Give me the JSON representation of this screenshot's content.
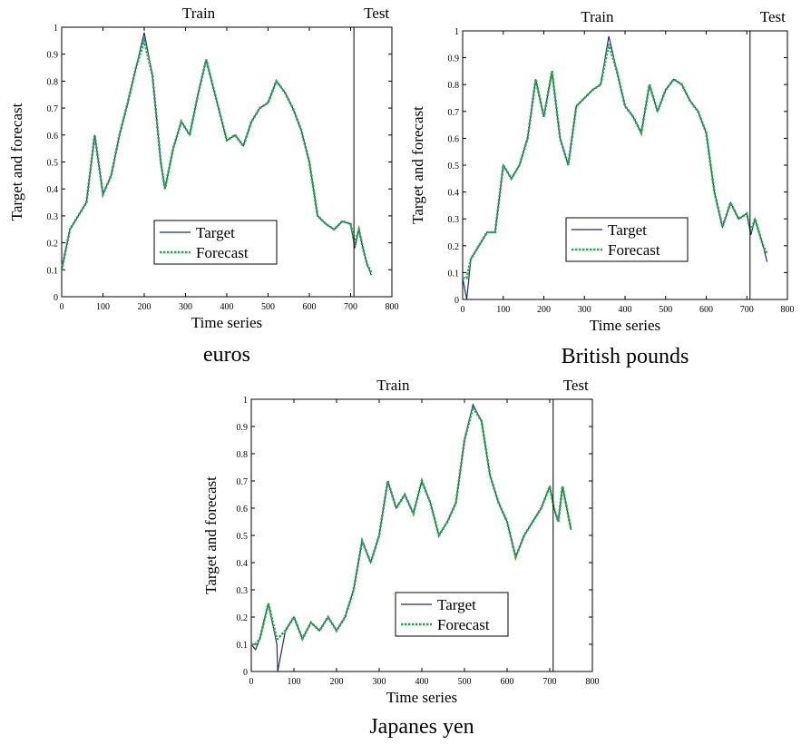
{
  "figure": {
    "target_color": "#1f2a7a",
    "forecast_color": "#2aa84a"
  },
  "chart_data": [
    {
      "type": "line",
      "caption": "euros",
      "xlabel": "Time series",
      "ylabel": "Target and forecast",
      "xlim": [
        0,
        800
      ],
      "ylim": [
        0,
        1
      ],
      "xticks": [
        "0",
        "100",
        "200",
        "300",
        "400",
        "500",
        "600",
        "700",
        "800"
      ],
      "yticks": [
        "0",
        "0.1",
        "0.2",
        "0.3",
        "0.4",
        "0.5",
        "0.6",
        "0.7",
        "0.8",
        "0.9",
        "1"
      ],
      "region_labels": {
        "train": "Train",
        "test": "Test"
      },
      "split_x": 708,
      "legend": {
        "target": "Target",
        "forecast": "Forecast"
      },
      "legend_position": "lower-right",
      "grid": false,
      "series": [
        {
          "name": "Target",
          "x": [
            0,
            20,
            40,
            60,
            80,
            100,
            120,
            140,
            160,
            180,
            200,
            220,
            240,
            250,
            270,
            290,
            310,
            330,
            350,
            360,
            380,
            400,
            420,
            440,
            460,
            480,
            500,
            520,
            540,
            560,
            580,
            600,
            620,
            640,
            660,
            680,
            700,
            710,
            720,
            730,
            740,
            750
          ],
          "values": [
            0.1,
            0.25,
            0.3,
            0.35,
            0.6,
            0.38,
            0.45,
            0.6,
            0.72,
            0.85,
            0.98,
            0.82,
            0.5,
            0.4,
            0.55,
            0.65,
            0.6,
            0.75,
            0.88,
            0.82,
            0.7,
            0.58,
            0.6,
            0.56,
            0.65,
            0.7,
            0.72,
            0.8,
            0.76,
            0.7,
            0.62,
            0.5,
            0.3,
            0.27,
            0.25,
            0.28,
            0.27,
            0.18,
            0.25,
            0.18,
            0.12,
            0.08
          ]
        },
        {
          "name": "Forecast",
          "x": [
            0,
            20,
            40,
            60,
            80,
            100,
            120,
            140,
            160,
            180,
            200,
            220,
            240,
            250,
            270,
            290,
            310,
            330,
            350,
            360,
            380,
            400,
            420,
            440,
            460,
            480,
            500,
            520,
            540,
            560,
            580,
            600,
            620,
            640,
            660,
            680,
            700,
            710,
            720,
            730,
            740,
            750
          ],
          "values": [
            0.1,
            0.25,
            0.3,
            0.35,
            0.6,
            0.38,
            0.45,
            0.6,
            0.72,
            0.85,
            0.95,
            0.82,
            0.5,
            0.4,
            0.55,
            0.65,
            0.6,
            0.75,
            0.88,
            0.82,
            0.7,
            0.58,
            0.6,
            0.56,
            0.65,
            0.7,
            0.72,
            0.8,
            0.76,
            0.7,
            0.62,
            0.5,
            0.3,
            0.27,
            0.25,
            0.28,
            0.27,
            0.2,
            0.25,
            0.18,
            0.12,
            0.09
          ]
        }
      ]
    },
    {
      "type": "line",
      "caption": "British pounds",
      "xlabel": "Time series",
      "ylabel": "Target and forecast",
      "xlim": [
        0,
        800
      ],
      "ylim": [
        0,
        1
      ],
      "xticks": [
        "0",
        "100",
        "200",
        "300",
        "400",
        "500",
        "600",
        "700",
        "800"
      ],
      "yticks": [
        "0",
        "0.1",
        "0.2",
        "0.3",
        "0.4",
        "0.5",
        "0.6",
        "0.7",
        "0.8",
        "0.9",
        "1"
      ],
      "region_labels": {
        "train": "Train",
        "test": "Test"
      },
      "split_x": 708,
      "legend": {
        "target": "Target",
        "forecast": "Forecast"
      },
      "legend_position": "lower-left",
      "grid": false,
      "series": [
        {
          "name": "Target",
          "x": [
            0,
            10,
            20,
            40,
            60,
            80,
            100,
            120,
            140,
            160,
            180,
            200,
            220,
            240,
            260,
            280,
            300,
            320,
            340,
            360,
            380,
            400,
            420,
            440,
            460,
            480,
            500,
            520,
            540,
            560,
            580,
            600,
            620,
            640,
            660,
            680,
            700,
            710,
            720,
            740,
            750
          ],
          "values": [
            0.08,
            0.0,
            0.15,
            0.2,
            0.25,
            0.25,
            0.5,
            0.45,
            0.5,
            0.6,
            0.82,
            0.68,
            0.85,
            0.6,
            0.5,
            0.72,
            0.75,
            0.78,
            0.8,
            0.98,
            0.85,
            0.72,
            0.68,
            0.62,
            0.8,
            0.7,
            0.78,
            0.82,
            0.8,
            0.74,
            0.7,
            0.62,
            0.4,
            0.27,
            0.36,
            0.3,
            0.32,
            0.24,
            0.3,
            0.2,
            0.14
          ]
        },
        {
          "name": "Forecast",
          "x": [
            0,
            10,
            20,
            40,
            60,
            80,
            100,
            120,
            140,
            160,
            180,
            200,
            220,
            240,
            260,
            280,
            300,
            320,
            340,
            360,
            380,
            400,
            420,
            440,
            460,
            480,
            500,
            520,
            540,
            560,
            580,
            600,
            620,
            640,
            660,
            680,
            700,
            710,
            720,
            740,
            750
          ],
          "values": [
            0.08,
            0.08,
            0.15,
            0.2,
            0.25,
            0.25,
            0.5,
            0.45,
            0.5,
            0.6,
            0.82,
            0.68,
            0.85,
            0.6,
            0.5,
            0.72,
            0.75,
            0.78,
            0.8,
            0.95,
            0.85,
            0.72,
            0.68,
            0.62,
            0.8,
            0.7,
            0.78,
            0.82,
            0.8,
            0.74,
            0.7,
            0.62,
            0.4,
            0.27,
            0.36,
            0.3,
            0.32,
            0.25,
            0.3,
            0.2,
            0.17
          ]
        }
      ]
    },
    {
      "type": "line",
      "caption": "Japanes yen",
      "xlabel": "Time series",
      "ylabel": "Target and forecast",
      "xlim": [
        0,
        800
      ],
      "ylim": [
        0,
        1
      ],
      "xticks": [
        "0",
        "100",
        "200",
        "300",
        "400",
        "500",
        "600",
        "700",
        "800"
      ],
      "yticks": [
        "0",
        "0.1",
        "0.2",
        "0.3",
        "0.4",
        "0.5",
        "0.6",
        "0.7",
        "0.8",
        "0.9",
        "1"
      ],
      "region_labels": {
        "train": "Train",
        "test": "Test"
      },
      "split_x": 708,
      "legend": {
        "target": "Target",
        "forecast": "Forecast"
      },
      "legend_position": "lower-center",
      "grid": false,
      "series": [
        {
          "name": "Target",
          "x": [
            0,
            10,
            20,
            40,
            60,
            62,
            80,
            100,
            120,
            140,
            160,
            180,
            200,
            220,
            240,
            260,
            280,
            300,
            320,
            340,
            360,
            380,
            400,
            420,
            440,
            460,
            480,
            500,
            520,
            540,
            560,
            580,
            600,
            620,
            640,
            660,
            680,
            700,
            710,
            720,
            730,
            740,
            750
          ],
          "values": [
            0.1,
            0.08,
            0.12,
            0.25,
            0.1,
            0.0,
            0.15,
            0.2,
            0.12,
            0.18,
            0.15,
            0.2,
            0.15,
            0.2,
            0.3,
            0.48,
            0.4,
            0.5,
            0.7,
            0.6,
            0.65,
            0.58,
            0.7,
            0.62,
            0.5,
            0.55,
            0.62,
            0.85,
            0.98,
            0.92,
            0.72,
            0.62,
            0.55,
            0.42,
            0.5,
            0.55,
            0.6,
            0.68,
            0.6,
            0.55,
            0.68,
            0.6,
            0.52
          ]
        },
        {
          "name": "Forecast",
          "x": [
            0,
            10,
            20,
            40,
            60,
            62,
            80,
            100,
            120,
            140,
            160,
            180,
            200,
            220,
            240,
            260,
            280,
            300,
            320,
            340,
            360,
            380,
            400,
            420,
            440,
            460,
            480,
            500,
            520,
            540,
            560,
            580,
            600,
            620,
            640,
            660,
            680,
            700,
            710,
            720,
            730,
            740,
            750
          ],
          "values": [
            0.1,
            0.1,
            0.12,
            0.25,
            0.12,
            0.12,
            0.15,
            0.2,
            0.12,
            0.18,
            0.15,
            0.2,
            0.15,
            0.2,
            0.3,
            0.48,
            0.4,
            0.5,
            0.7,
            0.6,
            0.65,
            0.58,
            0.7,
            0.62,
            0.5,
            0.55,
            0.62,
            0.85,
            0.97,
            0.92,
            0.72,
            0.62,
            0.55,
            0.42,
            0.5,
            0.55,
            0.6,
            0.68,
            0.6,
            0.55,
            0.68,
            0.6,
            0.52
          ]
        }
      ]
    }
  ]
}
